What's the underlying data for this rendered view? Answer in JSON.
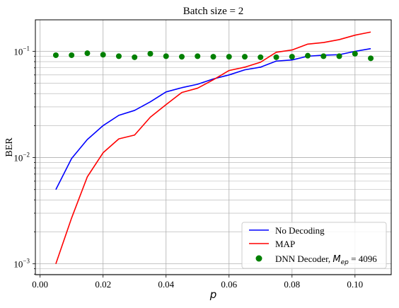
{
  "chart_data": {
    "type": "line",
    "title": "Batch size = 2",
    "xlabel": "p",
    "ylabel": "BER",
    "xlim": [
      -0.0015,
      0.1115
    ],
    "ylim": [
      0.00079,
      0.198
    ],
    "yscale": "log",
    "grid": true,
    "legend_position": "lower-right",
    "x_ticks": [
      0.0,
      0.02,
      0.04,
      0.06,
      0.08,
      0.1
    ],
    "x_tick_labels": [
      "0.00",
      "0.02",
      "0.04",
      "0.06",
      "0.08",
      "0.10"
    ],
    "y_ticks": [
      0.001,
      0.01,
      0.1
    ],
    "y_tick_labels": [
      {
        "base": "10",
        "exp": "−3"
      },
      {
        "base": "10",
        "exp": "−2"
      },
      {
        "base": "10",
        "exp": "−1"
      }
    ],
    "x": [
      0.005,
      0.01,
      0.015,
      0.02,
      0.025,
      0.03,
      0.035,
      0.04,
      0.045,
      0.05,
      0.055,
      0.06,
      0.065,
      0.07,
      0.075,
      0.08,
      0.085,
      0.09,
      0.095,
      0.1,
      0.105
    ],
    "series": [
      {
        "name": "No Decoding",
        "kind": "line",
        "color": "#0000ff",
        "values": [
          0.005,
          0.0098,
          0.0148,
          0.02,
          0.025,
          0.0278,
          0.0335,
          0.0415,
          0.0455,
          0.049,
          0.055,
          0.06,
          0.067,
          0.071,
          0.081,
          0.083,
          0.09,
          0.092,
          0.093,
          0.1,
          0.106
        ]
      },
      {
        "name": "MAP",
        "kind": "line",
        "color": "#ff0000",
        "values": [
          0.001,
          0.0027,
          0.0066,
          0.0111,
          0.015,
          0.0163,
          0.024,
          0.0315,
          0.041,
          0.045,
          0.054,
          0.066,
          0.071,
          0.079,
          0.098,
          0.103,
          0.117,
          0.121,
          0.129,
          0.142,
          0.152
        ]
      },
      {
        "name_prefix": "DNN Decoder, ",
        "name_math": {
          "base": "M",
          "sub": "ep",
          "rest": " = 4096"
        },
        "kind": "scatter",
        "color": "#008000",
        "values": [
          0.092,
          0.092,
          0.096,
          0.093,
          0.09,
          0.088,
          0.095,
          0.09,
          0.089,
          0.09,
          0.089,
          0.089,
          0.089,
          0.088,
          0.088,
          0.089,
          0.091,
          0.09,
          0.09,
          0.095,
          0.086
        ]
      }
    ]
  }
}
